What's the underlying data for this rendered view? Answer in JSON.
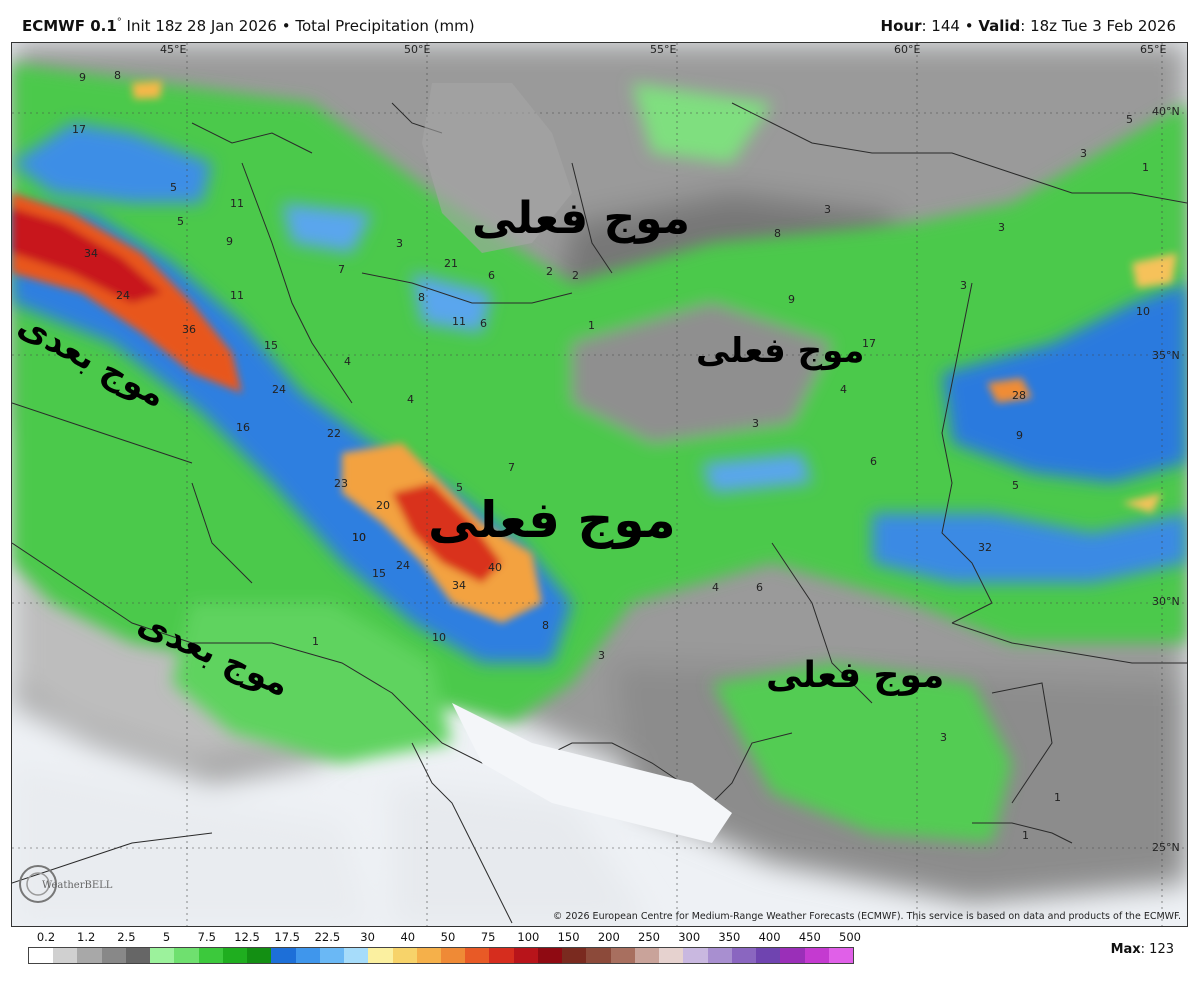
{
  "header": {
    "model": "ECMWF 0.1",
    "deg": "°",
    "init": " Init 18z 28 Jan 2026",
    "sep": " • ",
    "product": "Total Precipitation (mm)",
    "hour_label": "Hour",
    "hour_value": ": 144",
    "valid_label": "Valid",
    "valid_value": ": 18z Tue 3 Feb 2026"
  },
  "map": {
    "lon_labels": [
      "45°E",
      "50°E",
      "55°E",
      "60°E",
      "65°E"
    ],
    "lat_labels": [
      "40°N",
      "35°N",
      "30°N",
      "25°N"
    ],
    "annotations": [
      {
        "text": "موج فعلی"
      },
      {
        "text": "موج فعلی"
      },
      {
        "text": "موج فعلی"
      },
      {
        "text": "موج فعلی"
      },
      {
        "text": "موج بعدی"
      },
      {
        "text": "موج بعدی"
      }
    ],
    "values": [
      "9",
      "8",
      "17",
      "5",
      "5",
      "11",
      "9",
      "11",
      "34",
      "24",
      "36",
      "15",
      "24",
      "16",
      "22",
      "23",
      "20",
      "10",
      "24",
      "15",
      "34",
      "40",
      "8",
      "3",
      "5",
      "7",
      "4",
      "4",
      "7",
      "21",
      "6",
      "6",
      "8",
      "11",
      "3",
      "2",
      "2",
      "1",
      "3",
      "8",
      "9",
      "3",
      "3",
      "17",
      "4",
      "3",
      "6",
      "9",
      "10",
      "28",
      "5",
      "32",
      "4",
      "6",
      "3",
      "3",
      "1",
      "1",
      "10",
      "10",
      "5",
      "1",
      "1"
    ],
    "credit": "© 2026 European Centre for Medium-Range Weather Forecasts (ECMWF). This service is based on data and products of the ECMWF.",
    "logo_text": "WeatherBELL"
  },
  "legend": {
    "ticks": [
      "0.2",
      "1.2",
      "2.5",
      "5",
      "7.5",
      "12.5",
      "17.5",
      "22.5",
      "30",
      "40",
      "50",
      "75",
      "100",
      "150",
      "200",
      "250",
      "300",
      "350",
      "400",
      "450",
      "500"
    ],
    "colors": [
      "#ffffff",
      "#d0d0d0",
      "#a8a8a8",
      "#888888",
      "#666666",
      "#9cf29c",
      "#6fe06f",
      "#3cc93c",
      "#1fae1f",
      "#138f13",
      "#1d6fd8",
      "#3f96ec",
      "#6ab8f5",
      "#a6dcfa",
      "#fbf0a0",
      "#f7d36a",
      "#f5b04a",
      "#ef8a36",
      "#e85a26",
      "#d62d1e",
      "#b8141a",
      "#8f0a12",
      "#7a2a1f",
      "#8c4a3a",
      "#a86f5f",
      "#c9a39a",
      "#e6d2cf",
      "#c9b8e0",
      "#a88fd0",
      "#8a66c0",
      "#6f44b0",
      "#9a2fb8",
      "#c43ad0",
      "#e060e8"
    ],
    "max_label": "Max",
    "max_value": ": 123"
  }
}
